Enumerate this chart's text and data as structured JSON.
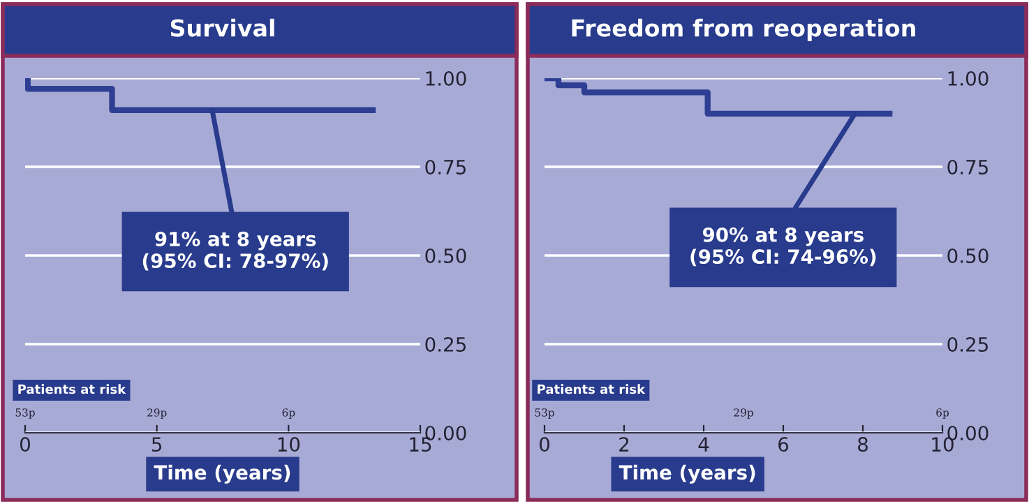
{
  "chart_data": [
    {
      "type": "step",
      "title": "Survival",
      "xlabel": "Time (years)",
      "x": [
        0,
        0.1,
        3.3,
        13.2
      ],
      "series": [
        {
          "color": "#2e3f93",
          "values": [
            1.0,
            0.97,
            0.91,
            0.91
          ]
        }
      ],
      "xlim": [
        0,
        15
      ],
      "xticks": [
        0,
        5,
        10,
        15
      ],
      "ylim": [
        0,
        1
      ],
      "yticks": [
        {
          "value": 0,
          "label": "0.00"
        },
        {
          "value": 0.25,
          "label": "0.25"
        },
        {
          "value": 0.5,
          "label": "0.50"
        },
        {
          "value": 0.75,
          "label": "0.75"
        },
        {
          "value": 1,
          "label": "1.00"
        }
      ],
      "grid": "y",
      "line_style": "solid",
      "annotations": [
        {
          "text": "91% at 8 years\n(95% CI: 78-97%)",
          "x": 7.1,
          "y": 0.91
        },
        "Patients at risk",
        "53p",
        "29p",
        "6p"
      ]
    },
    {
      "type": "step",
      "title": "Freedom from reoperation",
      "xlabel": "Time (years)",
      "x": [
        0,
        0.35,
        1.0,
        4.1,
        8.67
      ],
      "series": [
        {
          "color": "#2e3f93",
          "values": [
            1.0,
            0.98,
            0.96,
            0.9,
            0.9
          ]
        }
      ],
      "xlim": [
        0,
        10
      ],
      "xticks": [
        0,
        2,
        4,
        6,
        8,
        10
      ],
      "ylim": [
        0,
        1
      ],
      "yticks": [
        {
          "value": 0,
          "label": "0.00"
        },
        {
          "value": 0.25,
          "label": "0.25"
        },
        {
          "value": 0.5,
          "label": "0.50"
        },
        {
          "value": 0.75,
          "label": "0.75"
        },
        {
          "value": 1,
          "label": "1.00"
        }
      ],
      "grid": "y",
      "line_style": "solid",
      "annotations": [
        {
          "text": "90% at 8 years\n(95% CI: 74-96%)",
          "x": 7.8,
          "y": 0.9
        },
        "Patients at risk",
        "53p",
        "29p",
        "6p"
      ]
    }
  ]
}
